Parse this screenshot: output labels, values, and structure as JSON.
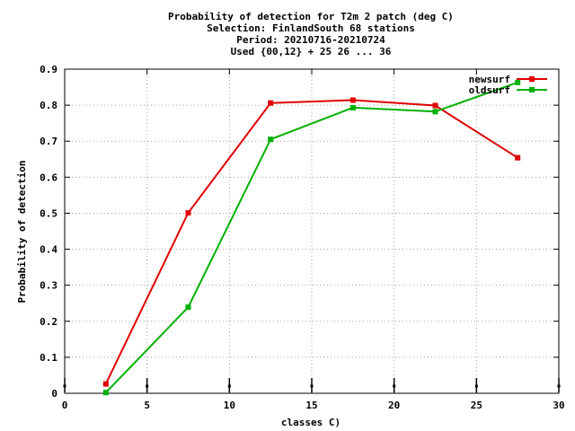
{
  "chart_data": {
    "type": "line",
    "title_lines": [
      "Probability of detection  for T2m 2 patch (deg C)",
      "Selection: FinlandSouth     68 stations",
      "Period: 20210716-20210724",
      "Used {00,12} + 25 26 ... 36"
    ],
    "xlabel": "classes C)",
    "ylabel": "Probability of detection",
    "xlim": [
      0,
      30
    ],
    "ylim": [
      0,
      0.9
    ],
    "xticks": [
      0,
      5,
      10,
      15,
      20,
      25,
      30
    ],
    "yticks": [
      0,
      0.1,
      0.2,
      0.3,
      0.4,
      0.5,
      0.6,
      0.7,
      0.8,
      0.9
    ],
    "xtick_labels": [
      "0",
      "5",
      "10",
      "15",
      "20",
      "25",
      "30"
    ],
    "ytick_labels": [
      "0",
      "0.1",
      "0.2",
      "0.3",
      "0.4",
      "0.5",
      "0.6",
      "0.7",
      "0.8",
      "0.9"
    ],
    "grid": true,
    "legend_position": "top-right",
    "class_markers_x": [
      0,
      5,
      10,
      15,
      20,
      25,
      30
    ],
    "series": [
      {
        "name": "newsurf",
        "color": "#e00000",
        "x": [
          2.5,
          7.5,
          12.5,
          17.5,
          22.5,
          27.5
        ],
        "y": [
          0.026,
          0.501,
          0.806,
          0.814,
          0.799,
          0.654
        ]
      },
      {
        "name": "oldsurf",
        "color": "#00b000",
        "x": [
          2.5,
          7.5,
          12.5,
          17.5,
          22.5,
          27.5
        ],
        "y": [
          0.002,
          0.239,
          0.705,
          0.793,
          0.782,
          0.863
        ]
      }
    ]
  }
}
